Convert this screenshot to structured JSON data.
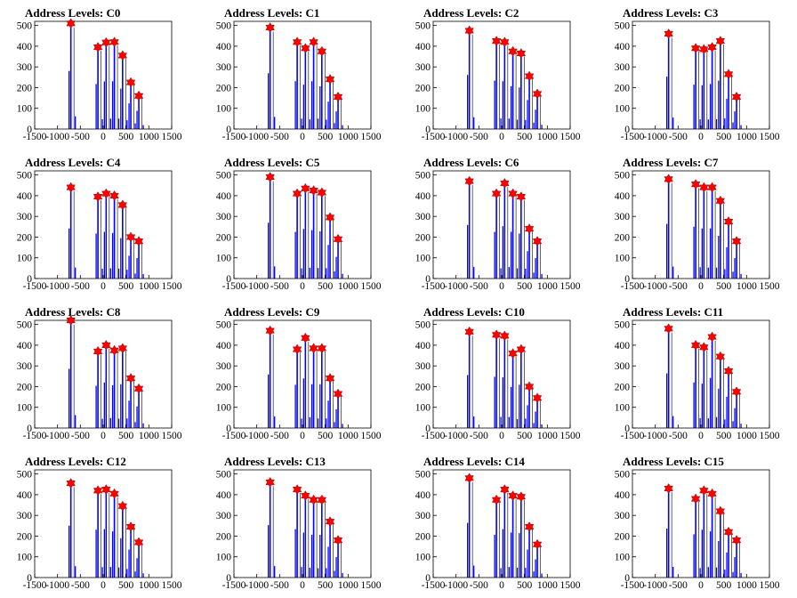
{
  "chart_data": [
    {
      "type": "bar",
      "title": "Address Levels: C0",
      "xlim": [
        -1500,
        1500
      ],
      "ylim": [
        0,
        520
      ],
      "xticks": [
        -1500,
        -1000,
        -500,
        0,
        500,
        1000,
        1500
      ],
      "xtick_labels": [
        "-1500",
        "-1000",
        "-500",
        "0",
        "500",
        "1000",
        "1500"
      ],
      "yticks": [
        0,
        100,
        200,
        300,
        400,
        500
      ],
      "ytick_labels": [
        "0",
        "100",
        "200",
        "300",
        "400",
        "500"
      ],
      "peaks": [
        {
          "x": -708,
          "y": 510
        },
        {
          "x": -115,
          "y": 395
        },
        {
          "x": 65,
          "y": 418
        },
        {
          "x": 245,
          "y": 420
        },
        {
          "x": 425,
          "y": 355
        },
        {
          "x": 605,
          "y": 225
        },
        {
          "x": 780,
          "y": 160
        }
      ],
      "colors": {
        "bars": "#0000ff",
        "markers": "#ff0000"
      }
    },
    {
      "type": "bar",
      "title": "Address Levels: C1",
      "xlim": [
        -1500,
        1500
      ],
      "ylim": [
        0,
        520
      ],
      "xticks": [
        -1500,
        -1000,
        -500,
        0,
        500,
        1000,
        1500
      ],
      "xtick_labels": [
        "-1500",
        "-1000",
        "-500",
        "0",
        "500",
        "1000",
        "1500"
      ],
      "yticks": [
        0,
        100,
        200,
        300,
        400,
        500
      ],
      "ytick_labels": [
        "0",
        "100",
        "200",
        "300",
        "400",
        "500"
      ],
      "peaks": [
        {
          "x": -708,
          "y": 490
        },
        {
          "x": -115,
          "y": 420
        },
        {
          "x": 65,
          "y": 390
        },
        {
          "x": 245,
          "y": 420
        },
        {
          "x": 425,
          "y": 375
        },
        {
          "x": 605,
          "y": 240
        },
        {
          "x": 780,
          "y": 155
        }
      ],
      "colors": {
        "bars": "#0000ff",
        "markers": "#ff0000"
      }
    },
    {
      "type": "bar",
      "title": "Address Levels: C2",
      "xlim": [
        -1500,
        1500
      ],
      "ylim": [
        0,
        520
      ],
      "xticks": [
        -1500,
        -1000,
        -500,
        0,
        500,
        1000,
        1500
      ],
      "xtick_labels": [
        "-1500",
        "-1000",
        "-500",
        "0",
        "500",
        "1000",
        "1500"
      ],
      "yticks": [
        0,
        100,
        200,
        300,
        400,
        500
      ],
      "ytick_labels": [
        "0",
        "100",
        "200",
        "300",
        "400",
        "500"
      ],
      "peaks": [
        {
          "x": -708,
          "y": 475
        },
        {
          "x": -115,
          "y": 425
        },
        {
          "x": 65,
          "y": 420
        },
        {
          "x": 245,
          "y": 375
        },
        {
          "x": 425,
          "y": 365
        },
        {
          "x": 605,
          "y": 255
        },
        {
          "x": 780,
          "y": 170
        }
      ],
      "colors": {
        "bars": "#0000ff",
        "markers": "#ff0000"
      }
    },
    {
      "type": "bar",
      "title": "Address Levels: C3",
      "xlim": [
        -1500,
        1500
      ],
      "ylim": [
        0,
        520
      ],
      "xticks": [
        -1500,
        -1000,
        -500,
        0,
        500,
        1000,
        1500
      ],
      "xtick_labels": [
        "-1500",
        "-1000",
        "-500",
        "0",
        "500",
        "1000",
        "1500"
      ],
      "yticks": [
        0,
        100,
        200,
        300,
        400,
        500
      ],
      "ytick_labels": [
        "0",
        "100",
        "200",
        "300",
        "400",
        "500"
      ],
      "peaks": [
        {
          "x": -708,
          "y": 460
        },
        {
          "x": -115,
          "y": 390
        },
        {
          "x": 65,
          "y": 385
        },
        {
          "x": 245,
          "y": 395
        },
        {
          "x": 425,
          "y": 425
        },
        {
          "x": 605,
          "y": 265
        },
        {
          "x": 780,
          "y": 155
        }
      ],
      "colors": {
        "bars": "#0000ff",
        "markers": "#ff0000"
      }
    },
    {
      "type": "bar",
      "title": "Address Levels: C4",
      "xlim": [
        -1500,
        1500
      ],
      "ylim": [
        0,
        520
      ],
      "xticks": [
        -1500,
        -1000,
        -500,
        0,
        500,
        1000,
        1500
      ],
      "xtick_labels": [
        "-1500",
        "-1000",
        "-500",
        "0",
        "500",
        "1000",
        "1500"
      ],
      "yticks": [
        0,
        100,
        200,
        300,
        400,
        500
      ],
      "ytick_labels": [
        "0",
        "100",
        "200",
        "300",
        "400",
        "500"
      ],
      "peaks": [
        {
          "x": -708,
          "y": 440
        },
        {
          "x": -115,
          "y": 395
        },
        {
          "x": 65,
          "y": 410
        },
        {
          "x": 245,
          "y": 400
        },
        {
          "x": 425,
          "y": 355
        },
        {
          "x": 605,
          "y": 200
        },
        {
          "x": 780,
          "y": 180
        }
      ],
      "colors": {
        "bars": "#0000ff",
        "markers": "#ff0000"
      }
    },
    {
      "type": "bar",
      "title": "Address Levels: C5",
      "xlim": [
        -1500,
        1500
      ],
      "ylim": [
        0,
        520
      ],
      "xticks": [
        -1500,
        -1000,
        -500,
        0,
        500,
        1000,
        1500
      ],
      "xtick_labels": [
        "-1500",
        "-1000",
        "-500",
        "0",
        "500",
        "1000",
        "1500"
      ],
      "yticks": [
        0,
        100,
        200,
        300,
        400,
        500
      ],
      "ytick_labels": [
        "0",
        "100",
        "200",
        "300",
        "400",
        "500"
      ],
      "peaks": [
        {
          "x": -708,
          "y": 490
        },
        {
          "x": -115,
          "y": 410
        },
        {
          "x": 65,
          "y": 435
        },
        {
          "x": 245,
          "y": 425
        },
        {
          "x": 425,
          "y": 415
        },
        {
          "x": 605,
          "y": 295
        },
        {
          "x": 780,
          "y": 190
        }
      ],
      "colors": {
        "bars": "#0000ff",
        "markers": "#ff0000"
      }
    },
    {
      "type": "bar",
      "title": "Address Levels: C6",
      "xlim": [
        -1500,
        1500
      ],
      "ylim": [
        0,
        520
      ],
      "xticks": [
        -1500,
        -1000,
        -500,
        0,
        500,
        1000,
        1500
      ],
      "xtick_labels": [
        "-1500",
        "-1000",
        "-500",
        "0",
        "500",
        "1000",
        "1500"
      ],
      "yticks": [
        0,
        100,
        200,
        300,
        400,
        500
      ],
      "ytick_labels": [
        "0",
        "100",
        "200",
        "300",
        "400",
        "500"
      ],
      "peaks": [
        {
          "x": -708,
          "y": 470
        },
        {
          "x": -115,
          "y": 410
        },
        {
          "x": 65,
          "y": 460
        },
        {
          "x": 245,
          "y": 410
        },
        {
          "x": 425,
          "y": 395
        },
        {
          "x": 605,
          "y": 240
        },
        {
          "x": 780,
          "y": 180
        }
      ],
      "colors": {
        "bars": "#0000ff",
        "markers": "#ff0000"
      }
    },
    {
      "type": "bar",
      "title": "Address Levels: C7",
      "xlim": [
        -1500,
        1500
      ],
      "ylim": [
        0,
        520
      ],
      "xticks": [
        -1500,
        -1000,
        -500,
        0,
        500,
        1000,
        1500
      ],
      "xtick_labels": [
        "-1500",
        "-1000",
        "-500",
        "0",
        "500",
        "1000",
        "1500"
      ],
      "yticks": [
        0,
        100,
        200,
        300,
        400,
        500
      ],
      "ytick_labels": [
        "0",
        "100",
        "200",
        "300",
        "400",
        "500"
      ],
      "peaks": [
        {
          "x": -708,
          "y": 480
        },
        {
          "x": -115,
          "y": 455
        },
        {
          "x": 65,
          "y": 440
        },
        {
          "x": 245,
          "y": 440
        },
        {
          "x": 425,
          "y": 375
        },
        {
          "x": 605,
          "y": 275
        },
        {
          "x": 780,
          "y": 180
        }
      ],
      "colors": {
        "bars": "#0000ff",
        "markers": "#ff0000"
      }
    },
    {
      "type": "bar",
      "title": "Address Levels: C8",
      "xlim": [
        -1500,
        1500
      ],
      "ylim": [
        0,
        520
      ],
      "xticks": [
        -1500,
        -1000,
        -500,
        0,
        500,
        1000,
        1500
      ],
      "xtick_labels": [
        "-1500",
        "-1000",
        "-500",
        "0",
        "500",
        "1000",
        "1500"
      ],
      "yticks": [
        0,
        100,
        200,
        300,
        400,
        500
      ],
      "ytick_labels": [
        "0",
        "100",
        "200",
        "300",
        "400",
        "500"
      ],
      "peaks": [
        {
          "x": -708,
          "y": 520
        },
        {
          "x": -115,
          "y": 370
        },
        {
          "x": 65,
          "y": 400
        },
        {
          "x": 245,
          "y": 375
        },
        {
          "x": 425,
          "y": 385
        },
        {
          "x": 605,
          "y": 240
        },
        {
          "x": 780,
          "y": 190
        }
      ],
      "colors": {
        "bars": "#0000ff",
        "markers": "#ff0000"
      }
    },
    {
      "type": "bar",
      "title": "Address Levels: C9",
      "xlim": [
        -1500,
        1500
      ],
      "ylim": [
        0,
        520
      ],
      "xticks": [
        -1500,
        -1000,
        -500,
        0,
        500,
        1000,
        1500
      ],
      "xtick_labels": [
        "-1500",
        "-1000",
        "-500",
        "0",
        "500",
        "1000",
        "1500"
      ],
      "yticks": [
        0,
        100,
        200,
        300,
        400,
        500
      ],
      "ytick_labels": [
        "0",
        "100",
        "200",
        "300",
        "400",
        "500"
      ],
      "peaks": [
        {
          "x": -708,
          "y": 470
        },
        {
          "x": -115,
          "y": 380
        },
        {
          "x": 65,
          "y": 435
        },
        {
          "x": 245,
          "y": 385
        },
        {
          "x": 425,
          "y": 385
        },
        {
          "x": 605,
          "y": 240
        },
        {
          "x": 780,
          "y": 165
        }
      ],
      "colors": {
        "bars": "#0000ff",
        "markers": "#ff0000"
      }
    },
    {
      "type": "bar",
      "title": "Address Levels: C10",
      "xlim": [
        -1500,
        1500
      ],
      "ylim": [
        0,
        520
      ],
      "xticks": [
        -1500,
        -1000,
        -500,
        0,
        500,
        1000,
        1500
      ],
      "xtick_labels": [
        "-1500",
        "-1000",
        "-500",
        "0",
        "500",
        "1000",
        "1500"
      ],
      "yticks": [
        0,
        100,
        200,
        300,
        400,
        500
      ],
      "ytick_labels": [
        "0",
        "100",
        "200",
        "300",
        "400",
        "500"
      ],
      "peaks": [
        {
          "x": -708,
          "y": 465
        },
        {
          "x": -115,
          "y": 450
        },
        {
          "x": 65,
          "y": 445
        },
        {
          "x": 245,
          "y": 360
        },
        {
          "x": 425,
          "y": 380
        },
        {
          "x": 605,
          "y": 200
        },
        {
          "x": 780,
          "y": 145
        }
      ],
      "colors": {
        "bars": "#0000ff",
        "markers": "#ff0000"
      }
    },
    {
      "type": "bar",
      "title": "Address Levels: C11",
      "xlim": [
        -1500,
        1500
      ],
      "ylim": [
        0,
        520
      ],
      "xticks": [
        -1500,
        -1000,
        -500,
        0,
        500,
        1000,
        1500
      ],
      "xtick_labels": [
        "-1500",
        "-1000",
        "-500",
        "0",
        "500",
        "1000",
        "1500"
      ],
      "yticks": [
        0,
        100,
        200,
        300,
        400,
        500
      ],
      "ytick_labels": [
        "0",
        "100",
        "200",
        "300",
        "400",
        "500"
      ],
      "peaks": [
        {
          "x": -708,
          "y": 480
        },
        {
          "x": -115,
          "y": 400
        },
        {
          "x": 65,
          "y": 390
        },
        {
          "x": 245,
          "y": 440
        },
        {
          "x": 425,
          "y": 345
        },
        {
          "x": 605,
          "y": 275
        },
        {
          "x": 780,
          "y": 175
        }
      ],
      "colors": {
        "bars": "#0000ff",
        "markers": "#ff0000"
      }
    },
    {
      "type": "bar",
      "title": "Address Levels: C12",
      "xlim": [
        -1500,
        1500
      ],
      "ylim": [
        0,
        520
      ],
      "xticks": [
        -1500,
        -1000,
        -500,
        0,
        500,
        1000,
        1500
      ],
      "xtick_labels": [
        "-1500",
        "-1000",
        "-500",
        "0",
        "500",
        "1000",
        "1500"
      ],
      "yticks": [
        0,
        100,
        200,
        300,
        400,
        500
      ],
      "ytick_labels": [
        "0",
        "100",
        "200",
        "300",
        "400",
        "500"
      ],
      "peaks": [
        {
          "x": -708,
          "y": 455
        },
        {
          "x": -115,
          "y": 420
        },
        {
          "x": 65,
          "y": 425
        },
        {
          "x": 245,
          "y": 405
        },
        {
          "x": 425,
          "y": 345
        },
        {
          "x": 605,
          "y": 245
        },
        {
          "x": 780,
          "y": 170
        }
      ],
      "colors": {
        "bars": "#0000ff",
        "markers": "#ff0000"
      }
    },
    {
      "type": "bar",
      "title": "Address Levels: C13",
      "xlim": [
        -1500,
        1500
      ],
      "ylim": [
        0,
        520
      ],
      "xticks": [
        -1500,
        -1000,
        -500,
        0,
        500,
        1000,
        1500
      ],
      "xtick_labels": [
        "-1500",
        "-1000",
        "-500",
        "0",
        "500",
        "1000",
        "1500"
      ],
      "yticks": [
        0,
        100,
        200,
        300,
        400,
        500
      ],
      "ytick_labels": [
        "0",
        "100",
        "200",
        "300",
        "400",
        "500"
      ],
      "peaks": [
        {
          "x": -708,
          "y": 460
        },
        {
          "x": -115,
          "y": 425
        },
        {
          "x": 65,
          "y": 395
        },
        {
          "x": 245,
          "y": 375
        },
        {
          "x": 425,
          "y": 375
        },
        {
          "x": 605,
          "y": 270
        },
        {
          "x": 780,
          "y": 180
        }
      ],
      "colors": {
        "bars": "#0000ff",
        "markers": "#ff0000"
      }
    },
    {
      "type": "bar",
      "title": "Address Levels: C14",
      "xlim": [
        -1500,
        1500
      ],
      "ylim": [
        0,
        520
      ],
      "xticks": [
        -1500,
        -1000,
        -500,
        0,
        500,
        1000,
        1500
      ],
      "xtick_labels": [
        "-1500",
        "-1000",
        "-500",
        "0",
        "500",
        "1000",
        "1500"
      ],
      "yticks": [
        0,
        100,
        200,
        300,
        400,
        500
      ],
      "ytick_labels": [
        "0",
        "100",
        "200",
        "300",
        "400",
        "500"
      ],
      "peaks": [
        {
          "x": -708,
          "y": 480
        },
        {
          "x": -115,
          "y": 375
        },
        {
          "x": 65,
          "y": 425
        },
        {
          "x": 245,
          "y": 395
        },
        {
          "x": 425,
          "y": 390
        },
        {
          "x": 605,
          "y": 245
        },
        {
          "x": 780,
          "y": 160
        }
      ],
      "colors": {
        "bars": "#0000ff",
        "markers": "#ff0000"
      }
    },
    {
      "type": "bar",
      "title": "Address Levels: C15",
      "xlim": [
        -1500,
        1500
      ],
      "ylim": [
        0,
        520
      ],
      "xticks": [
        -1500,
        -1000,
        -500,
        0,
        500,
        1000,
        1500
      ],
      "xtick_labels": [
        "-1500",
        "-1000",
        "-500",
        "0",
        "500",
        "1000",
        "1500"
      ],
      "yticks": [
        0,
        100,
        200,
        300,
        400,
        500
      ],
      "ytick_labels": [
        "0",
        "100",
        "200",
        "300",
        "400",
        "500"
      ],
      "peaks": [
        {
          "x": -708,
          "y": 430
        },
        {
          "x": -115,
          "y": 380
        },
        {
          "x": 65,
          "y": 420
        },
        {
          "x": 245,
          "y": 405
        },
        {
          "x": 425,
          "y": 320
        },
        {
          "x": 605,
          "y": 220
        },
        {
          "x": 780,
          "y": 180
        }
      ],
      "colors": {
        "bars": "#0000ff",
        "markers": "#ff0000"
      }
    }
  ]
}
